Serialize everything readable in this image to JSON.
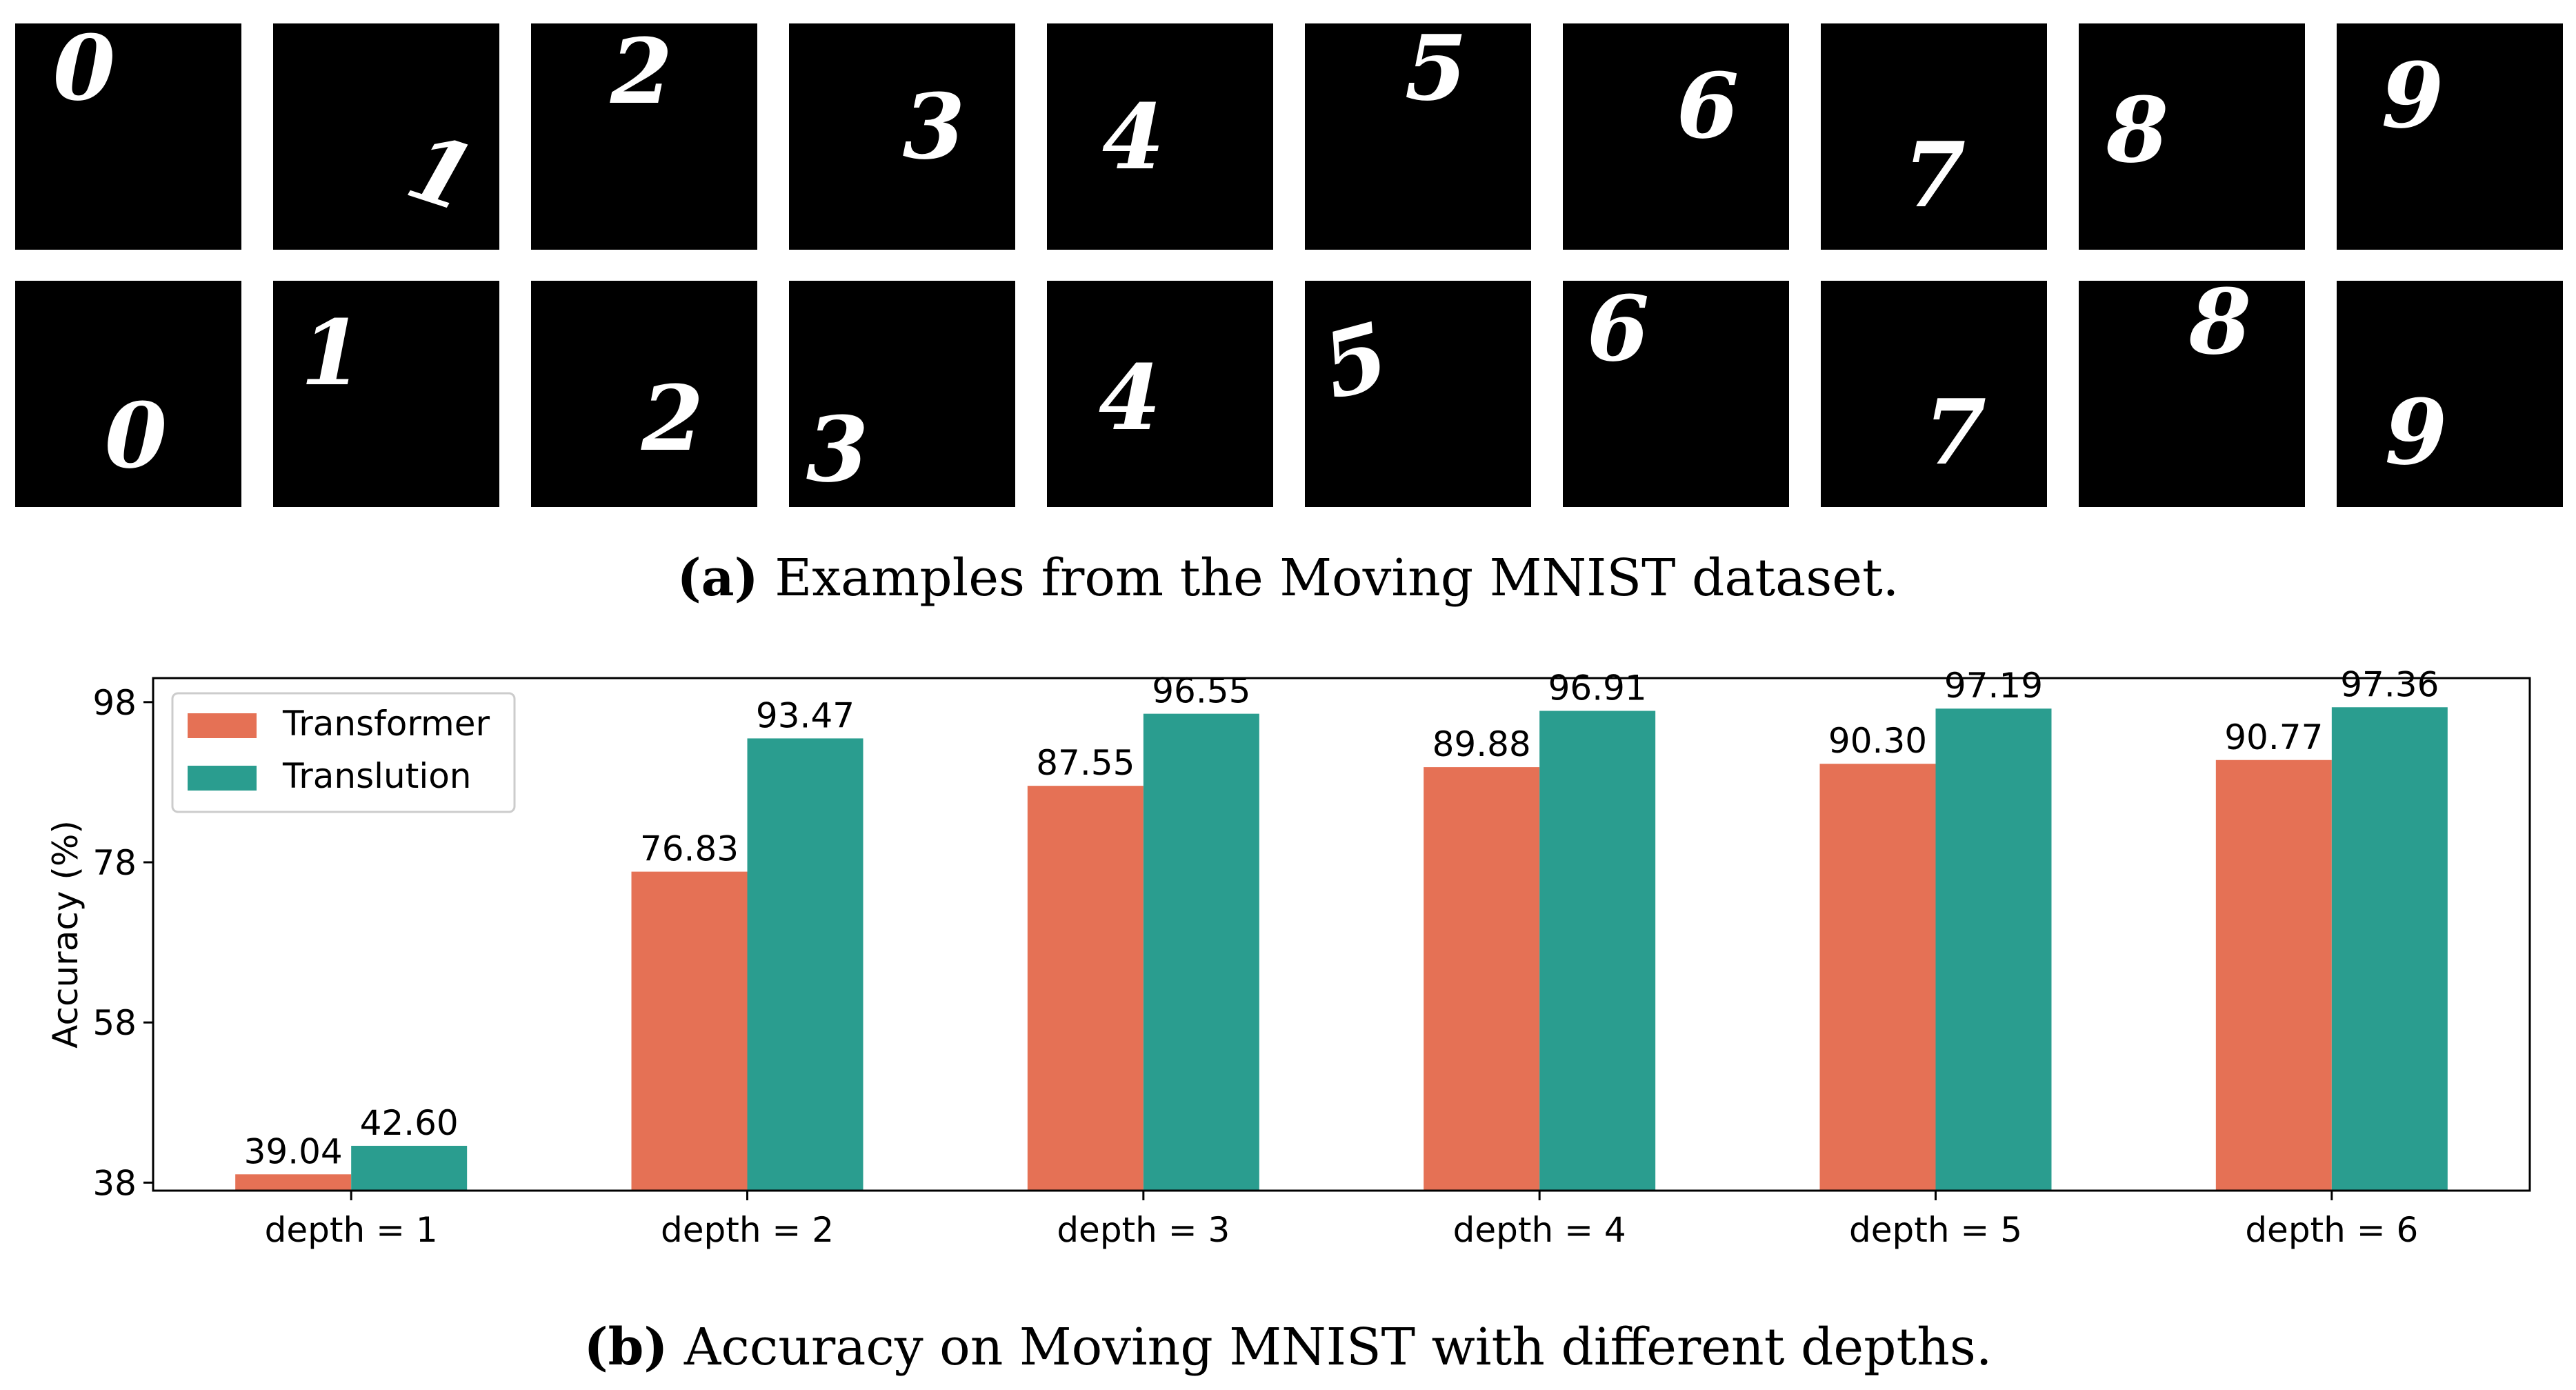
{
  "figure_a": {
    "caption_label": "(a)",
    "caption_text": "Examples from the Moving MNIST dataset.",
    "rows": [
      [
        "0",
        "1",
        "2",
        "3",
        "4",
        "5",
        "6",
        "7",
        "8",
        "9"
      ],
      [
        "0",
        "1",
        "2",
        "3",
        "4",
        "5",
        "6",
        "7",
        "8",
        "9"
      ]
    ]
  },
  "figure_b": {
    "caption_label": "(b)",
    "caption_text": "Accuracy on Moving MNIST with different depths."
  },
  "colors": {
    "transformer": "#E57155",
    "translution": "#2A9D8F"
  },
  "chart_data": {
    "type": "bar",
    "title": "",
    "xlabel": "",
    "ylabel": "Accuracy (%)",
    "ylim": [
      37,
      101
    ],
    "yticks": [
      38,
      58,
      78,
      98
    ],
    "legend_position": "top-left",
    "categories": [
      "depth = 1",
      "depth = 2",
      "depth = 3",
      "depth = 4",
      "depth = 5",
      "depth = 6"
    ],
    "series": [
      {
        "name": "Transformer",
        "values": [
          39.04,
          76.83,
          87.55,
          89.88,
          90.3,
          90.77
        ],
        "labels": [
          "39.04",
          "76.83",
          "87.55",
          "89.88",
          "90.30",
          "90.77"
        ]
      },
      {
        "name": "Translution",
        "values": [
          42.6,
          93.47,
          96.55,
          96.91,
          97.19,
          97.36
        ],
        "labels": [
          "42.60",
          "93.47",
          "96.55",
          "96.91",
          "97.19",
          "97.36"
        ]
      }
    ]
  }
}
